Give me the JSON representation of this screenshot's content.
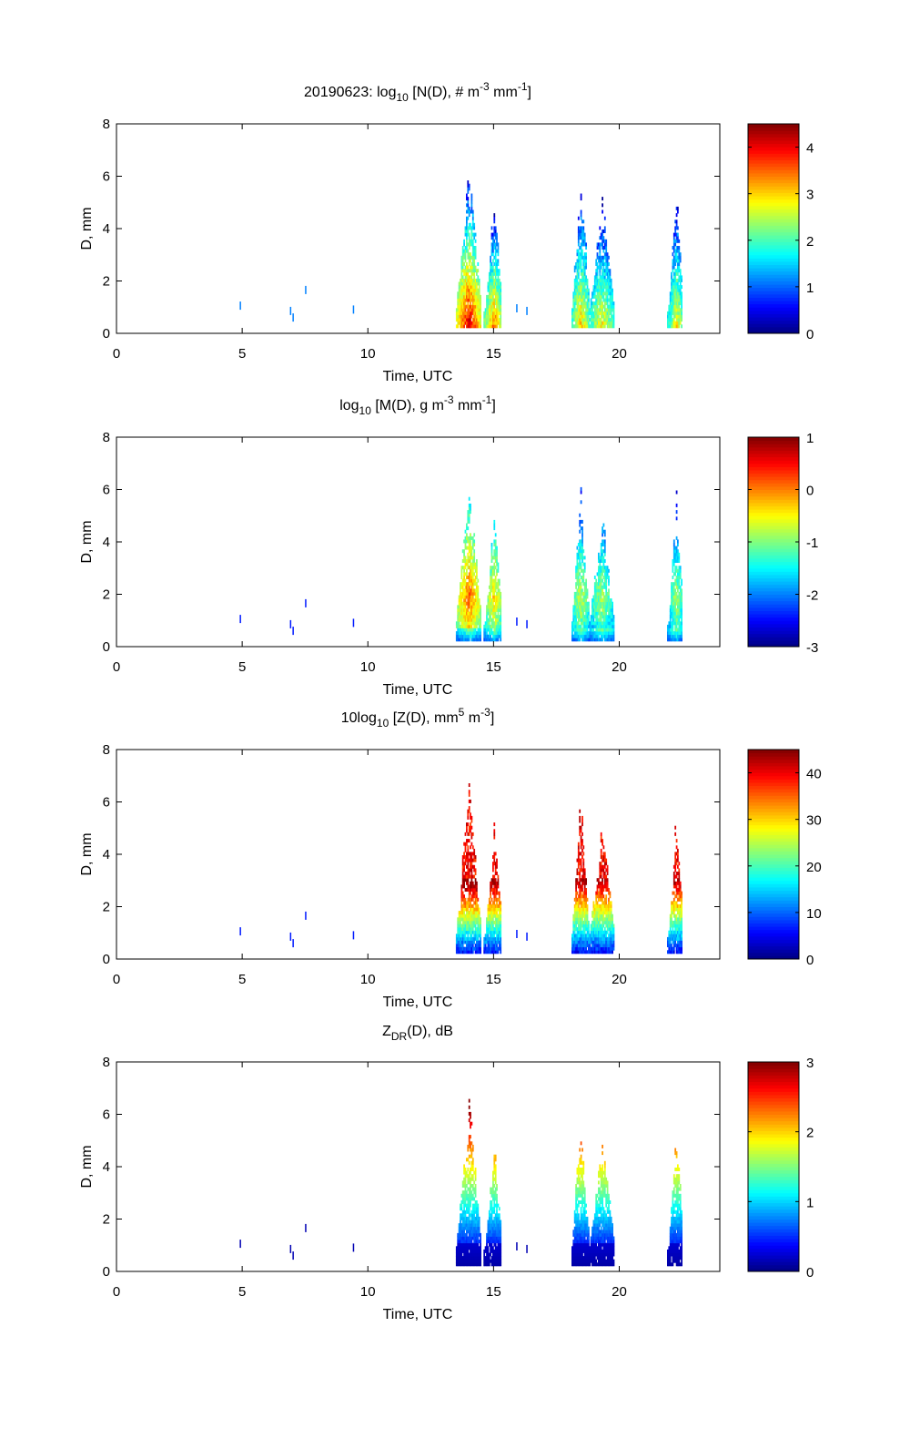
{
  "chart_data": [
    {
      "type": "heatmap",
      "title_parts": {
        "prefix": "20190623: log",
        "sub": "10",
        "mid": " [N(D), # m",
        "sup1": "-3",
        "mid2": " mm",
        "sup2": "-1",
        "suffix": "]"
      },
      "xlabel": "Time, UTC",
      "ylabel": "D, mm",
      "xlim": [
        0,
        24
      ],
      "ylim": [
        0,
        8
      ],
      "xticks": [
        "0",
        "5",
        "10",
        "15",
        "20"
      ],
      "yticks": [
        "0",
        "2",
        "4",
        "6",
        "8"
      ],
      "clim": [
        0,
        4.5
      ],
      "cticks": [
        "0",
        "1",
        "2",
        "3",
        "4"
      ],
      "cticks_values": [
        0,
        1,
        2,
        3,
        4
      ],
      "colormap": "jet",
      "profile": "n"
    },
    {
      "type": "heatmap",
      "title_parts": {
        "prefix": "log",
        "sub": "10",
        "mid": " [M(D), g m",
        "sup1": "-3",
        "mid2": " mm",
        "sup2": "-1",
        "suffix": "]"
      },
      "xlabel": "Time, UTC",
      "ylabel": "D, mm",
      "xlim": [
        0,
        24
      ],
      "ylim": [
        0,
        8
      ],
      "xticks": [
        "0",
        "5",
        "10",
        "15",
        "20"
      ],
      "yticks": [
        "0",
        "2",
        "4",
        "6",
        "8"
      ],
      "clim": [
        -3,
        1
      ],
      "cticks": [
        "-3",
        "-2",
        "-1",
        "0",
        "1"
      ],
      "cticks_values": [
        -3,
        -2,
        -1,
        0,
        1
      ],
      "colormap": "jet",
      "profile": "m"
    },
    {
      "type": "heatmap",
      "title_parts": {
        "prefix": "10log",
        "sub": "10",
        "mid": " [Z(D),  mm",
        "sup1": "5",
        "mid2": " m",
        "sup2": "-3",
        "suffix": "]"
      },
      "xlabel": "Time, UTC",
      "ylabel": "D, mm",
      "xlim": [
        0,
        24
      ],
      "ylim": [
        0,
        8
      ],
      "xticks": [
        "0",
        "5",
        "10",
        "15",
        "20"
      ],
      "yticks": [
        "0",
        "2",
        "4",
        "6",
        "8"
      ],
      "clim": [
        0,
        45
      ],
      "cticks": [
        "0",
        "10",
        "20",
        "30",
        "40"
      ],
      "cticks_values": [
        0,
        10,
        20,
        30,
        40
      ],
      "colormap": "jet",
      "profile": "z"
    },
    {
      "type": "heatmap",
      "title_parts": {
        "prefix": "Z",
        "sub": "DR",
        "mid": "(D), dB",
        "sup1": "",
        "mid2": "",
        "sup2": "",
        "suffix": ""
      },
      "xlabel": "Time, UTC",
      "ylabel": "D, mm",
      "xlim": [
        0,
        24
      ],
      "ylim": [
        0,
        8
      ],
      "xticks": [
        "0",
        "5",
        "10",
        "15",
        "20"
      ],
      "yticks": [
        "0",
        "2",
        "4",
        "6",
        "8"
      ],
      "clim": [
        0,
        3
      ],
      "cticks": [
        "0",
        "1",
        "2",
        "3"
      ],
      "cticks_values": [
        0,
        1,
        2,
        3
      ],
      "colormap": "jet",
      "profile": "zdr"
    }
  ],
  "rain_events": [
    {
      "t_start": 13.5,
      "t_end": 14.5,
      "t_peak": 14.0,
      "dmax": 6.9,
      "intensity": 1.0
    },
    {
      "t_start": 14.6,
      "t_end": 15.3,
      "t_peak": 15.0,
      "dmax": 5.3,
      "intensity": 0.85
    },
    {
      "t_start": 18.1,
      "t_end": 18.8,
      "t_peak": 18.45,
      "dmax": 6.5,
      "intensity": 0.75
    },
    {
      "t_start": 18.8,
      "t_end": 19.8,
      "t_peak": 19.3,
      "dmax": 5.3,
      "intensity": 0.7
    },
    {
      "t_start": 21.9,
      "t_end": 22.5,
      "t_peak": 22.25,
      "dmax": 5.9,
      "intensity": 0.7
    }
  ],
  "isolated_points": [
    {
      "t": 4.9,
      "d": 0.9
    },
    {
      "t": 6.9,
      "d": 0.7
    },
    {
      "t": 7.0,
      "d": 0.45
    },
    {
      "t": 7.5,
      "d": 1.5
    },
    {
      "t": 9.4,
      "d": 0.75
    },
    {
      "t": 15.9,
      "d": 0.8
    },
    {
      "t": 16.3,
      "d": 0.7
    }
  ]
}
